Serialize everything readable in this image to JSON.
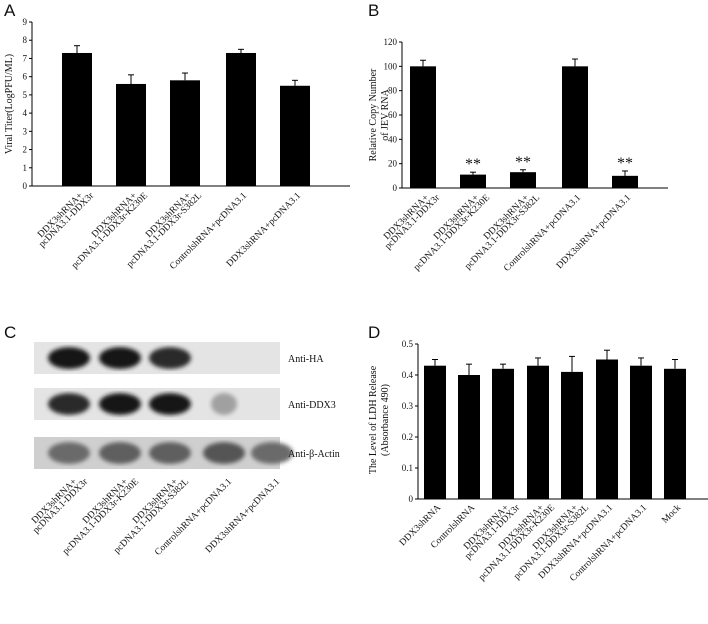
{
  "panels": {
    "A": {
      "letter": "A"
    },
    "B": {
      "letter": "B"
    },
    "C": {
      "letter": "C"
    },
    "D": {
      "letter": "D"
    }
  },
  "chart_data": [
    {
      "id": "A",
      "type": "bar",
      "ylabel": "Viral Titer(LogPFU/ML)",
      "ylim": [
        0,
        9
      ],
      "yticks": [
        0,
        1,
        2,
        3,
        4,
        5,
        6,
        7,
        8,
        9
      ],
      "categories": [
        [
          "DDX3shRNA+",
          "pcDNA3.1-DDX3r"
        ],
        [
          "DDX3shRNA+",
          "pcDNA3.1-DDX3r-K230E"
        ],
        [
          "DDX3shRNA+",
          "pcDNA3.1-DDX3r-S382L"
        ],
        [
          "ControlshRNA+pcDNA3.1"
        ],
        [
          "DDX3shRNA+pcDNA3.1"
        ]
      ],
      "values": [
        7.3,
        5.6,
        5.8,
        7.3,
        5.5
      ],
      "errors": [
        0.4,
        0.5,
        0.4,
        0.2,
        0.3
      ],
      "bar_color": "#000000"
    },
    {
      "id": "B",
      "type": "bar",
      "ylabel": [
        "Relative Copy Number",
        "of JEV RNA"
      ],
      "ylim": [
        0,
        120
      ],
      "yticks": [
        0,
        20,
        40,
        60,
        80,
        100,
        120
      ],
      "categories": [
        [
          "DDX3shRNA+",
          "pcDNA3.1-DDX3r"
        ],
        [
          "DDX3shRNA+",
          "pcDNA3.1-DDX3r-K230E"
        ],
        [
          "DDX3shRNA+",
          "pcDNA3.1-DDX3r-S382L"
        ],
        [
          "ControlshRNA+pcDNA3.1"
        ],
        [
          "DDX3shRNA+pcDNA3.1"
        ]
      ],
      "values": [
        100,
        11,
        13,
        100,
        10
      ],
      "errors": [
        5,
        2,
        2,
        6,
        4
      ],
      "annotations": [
        "",
        "**",
        "**",
        "",
        "**"
      ],
      "bar_color": "#000000"
    },
    {
      "id": "D",
      "type": "bar",
      "ylabel": [
        "The Level of LDH Release",
        "(Absorbance 490)"
      ],
      "ylim": [
        0,
        0.5
      ],
      "yticks": [
        "0",
        "0.1",
        "0.2",
        "0.3",
        "0.4",
        "0.5"
      ],
      "categories": [
        [
          "DDX3shRNA"
        ],
        [
          "ControlshRNA"
        ],
        [
          "DDX3shRNA+",
          "pcDNA3.1-DDX3r"
        ],
        [
          "DDX3shRNA+",
          "pcDNA3.1-DDX3r-K230E"
        ],
        [
          "DDX3shRNA+",
          "pcDNA3.1-DDX3r-S382L"
        ],
        [
          "DDX3shRNA+pcDNA3.1"
        ],
        [
          "ControlshRNA+pcDNA3.1"
        ],
        [
          "Mock"
        ]
      ],
      "values": [
        0.43,
        0.4,
        0.42,
        0.43,
        0.41,
        0.45,
        0.43,
        0.42
      ],
      "errors": [
        0.02,
        0.035,
        0.015,
        0.025,
        0.05,
        0.03,
        0.025,
        0.03
      ],
      "bar_color": "#000000"
    }
  ],
  "blot": {
    "labels": [
      "Anti-HA",
      "Anti-DDX3",
      "Anti-β-Actin"
    ],
    "lanes": [
      [
        "DDX3shRNA+",
        "pcDNA3.1-DDX3r"
      ],
      [
        "DDX3shRNA+",
        "pcDNA3.1-DDX3r-K230E"
      ],
      [
        "DDX3shRNA+",
        "pcDNA3.1-DDX3r-S382L"
      ],
      [
        "ControlshRNA+pcDNA3.1"
      ],
      [
        "DDX3shRNA+pcDNA3.1"
      ]
    ],
    "band_intensity": [
      [
        1.0,
        1.0,
        0.9,
        0.0,
        0.0
      ],
      [
        0.9,
        1.0,
        1.0,
        0.35,
        0.0
      ],
      [
        0.6,
        0.65,
        0.65,
        0.7,
        0.6
      ]
    ]
  }
}
